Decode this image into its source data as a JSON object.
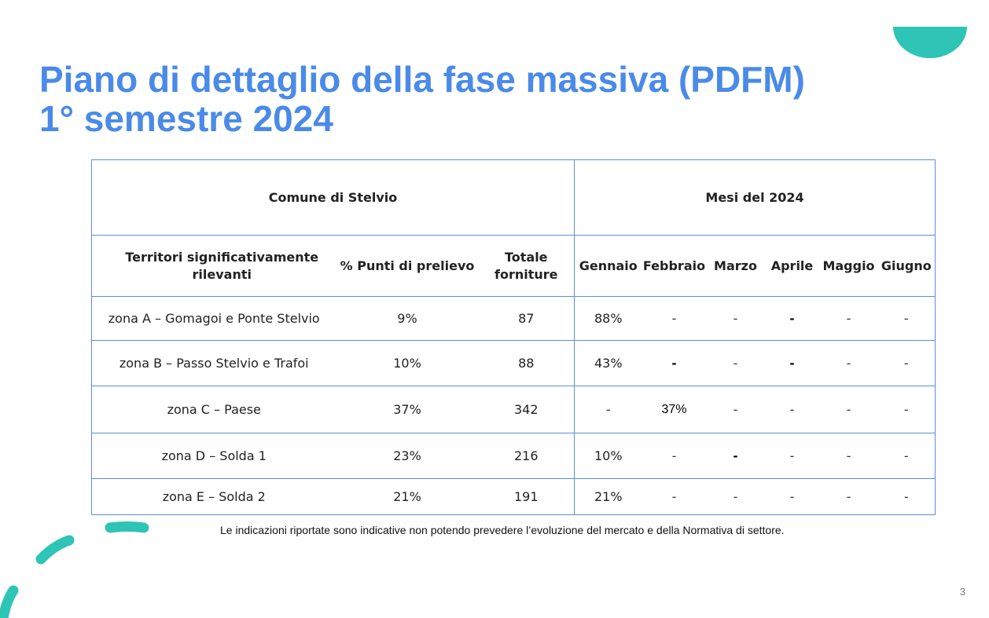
{
  "title": {
    "line1": "Piano di dettaglio della fase massiva (PDFM)",
    "line2": "1° semestre 2024"
  },
  "table": {
    "group_left": "Comune di Stelvio",
    "group_right": "Mesi del 2024",
    "headers": {
      "territori": "Territori significativamente rilevanti",
      "punti": "% Punti di prelievo",
      "totale": "Totale forniture",
      "months": [
        "Gennaio",
        "Febbraio",
        "Marzo",
        "Aprile",
        "Maggio",
        "Giugno"
      ]
    },
    "rows": [
      {
        "territorio": "zona A – Gomagoi e Ponte Stelvio",
        "punti": "9%",
        "totale": "87",
        "months": [
          "88%",
          "-",
          "-",
          "-",
          "-",
          "-"
        ]
      },
      {
        "territorio": "zona B – Passo Stelvio e Trafoi",
        "punti": "10%",
        "totale": "88",
        "months": [
          "43%",
          "-",
          "-",
          "-",
          "-",
          "-"
        ]
      },
      {
        "territorio": "zona C – Paese",
        "punti": "37%",
        "totale": "342",
        "months": [
          "-",
          "37%",
          "-",
          "-",
          "-",
          "-"
        ]
      },
      {
        "territorio": "zona D – Solda 1",
        "punti": "23%",
        "totale": "216",
        "months": [
          "10%",
          "-",
          "-",
          "-",
          "-",
          "-"
        ]
      },
      {
        "territorio": "zona E – Solda 2",
        "punti": "21%",
        "totale": "191",
        "months": [
          "21%",
          "-",
          "-",
          "-",
          "-",
          "-"
        ]
      }
    ]
  },
  "note": "Le indicazioni riportate sono indicative non potendo prevedere l’evoluzione del mercato e della Normativa di settore.",
  "page_number": "3",
  "colors": {
    "title": "#4a8ae8",
    "accent": "#2ec4b6",
    "table_border": "#5b8fd8"
  }
}
